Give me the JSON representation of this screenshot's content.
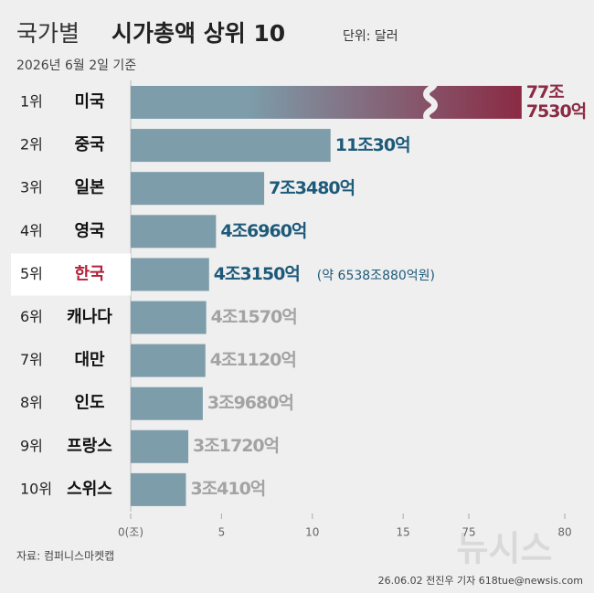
{
  "chart_data": {
    "type": "bar",
    "orientation": "horizontal",
    "title_lead": "국가별",
    "title": "시가총액 상위 10",
    "unit": "단위: 달러",
    "subtitle": "2026년 6월 2일 기준",
    "ranks": [
      "1위",
      "2위",
      "3위",
      "4위",
      "5위",
      "6위",
      "7위",
      "8위",
      "9위",
      "10위"
    ],
    "categories": [
      "미국",
      "중국",
      "일본",
      "영국",
      "한국",
      "캐나다",
      "대만",
      "인도",
      "프랑스",
      "스위스"
    ],
    "values": [
      77.753,
      11.003,
      7.348,
      4.696,
      4.315,
      4.157,
      4.112,
      3.968,
      3.172,
      3.041
    ],
    "value_labels": [
      "77조\n7530억",
      "11조30억",
      "7조3480억",
      "4조6960억",
      "4조3150억",
      "4조1570억",
      "4조1120억",
      "3조9680억",
      "3조1720억",
      "3조410억"
    ],
    "value_label_colors": [
      "#8b2a44",
      "#1d5a7a",
      "#1d5a7a",
      "#1d5a7a",
      "#1d5a7a",
      "#a3a3a3",
      "#a3a3a3",
      "#a3a3a3",
      "#a3a3a3",
      "#a3a3a3"
    ],
    "row_notes": [
      null,
      null,
      null,
      null,
      "(약 6538조880억원)",
      null,
      null,
      null,
      null,
      null
    ],
    "highlight": "한국",
    "highlight_color": "#b3213a",
    "color": "#7d9daa",
    "top_color": "#8b2a44",
    "xlim": [
      0,
      81
    ],
    "xbreak": [
      16.5,
      73
    ],
    "xticks": [
      {
        "value": 0,
        "label": "0(조)"
      },
      5,
      10,
      15,
      75,
      80
    ],
    "source": "자료: 컴퍼니스마켓캡",
    "credit": "26.06.02 전진우 기자 618tue@newsis.com",
    "watermark": "뉴시스"
  }
}
